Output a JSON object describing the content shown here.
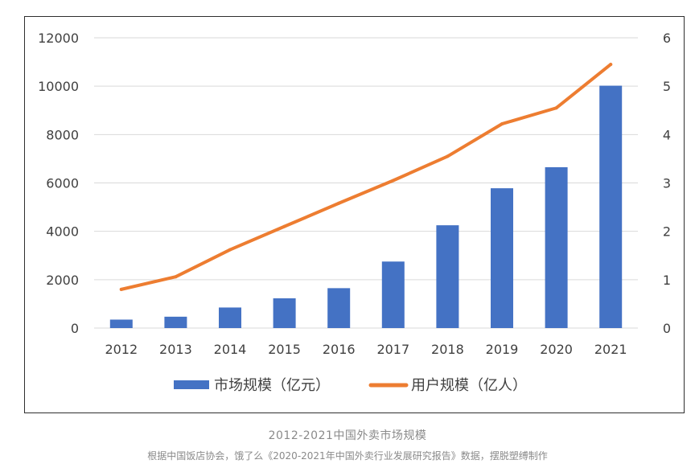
{
  "chart_data": {
    "type": "bar",
    "categories": [
      "2012",
      "2013",
      "2014",
      "2015",
      "2016",
      "2017",
      "2018",
      "2019",
      "2020",
      "2021"
    ],
    "series": [
      {
        "name": "市场规模（亿元）",
        "type": "bar",
        "axis": "left",
        "color": "#4472C4",
        "values": [
          350,
          470,
          850,
          1230,
          1650,
          2750,
          4250,
          5780,
          6650,
          10020
        ]
      },
      {
        "name": "用户规模（亿人）",
        "type": "line",
        "axis": "right",
        "color": "#ED7D31",
        "values": [
          0.8,
          1.06,
          1.62,
          2.1,
          2.58,
          3.05,
          3.55,
          4.22,
          4.55,
          5.45
        ]
      }
    ],
    "left_axis": {
      "min": 0,
      "max": 12000,
      "ticks": [
        "0",
        "2000",
        "4000",
        "6000",
        "8000",
        "10000",
        "12000"
      ]
    },
    "right_axis": {
      "min": 0,
      "max": 6,
      "ticks": [
        "0",
        "1",
        "2",
        "3",
        "4",
        "5",
        "6"
      ]
    },
    "grid": true,
    "legend_position": "bottom"
  },
  "caption": {
    "title": "2012-2021中国外卖市场规模",
    "source": "根据中国饭店协会，饿了么《2020-2021年中国外卖行业发展研究报告》数据，摆脱塑缚制作"
  }
}
